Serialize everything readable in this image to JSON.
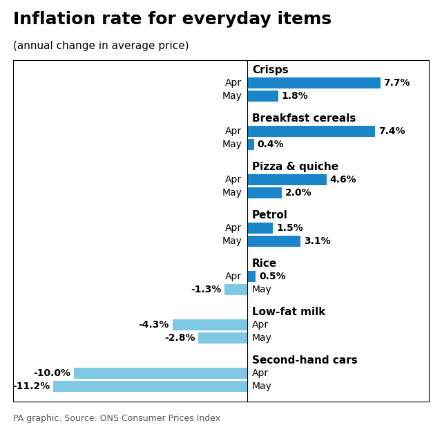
{
  "chart_data": {
    "type": "bar",
    "orientation": "horizontal",
    "title": "Inflation rate for everyday items",
    "subtitle": "(annual change in average price)",
    "footer": "PA graphic. Source: ONS Consumer Prices Index",
    "categories": [
      "Crisps",
      "Breakfast cereals",
      "Pizza & quiche",
      "Petrol",
      "Rice",
      "Low-fat milk",
      "Second-hand cars"
    ],
    "series": [
      {
        "name": "Apr",
        "values": [
          7.7,
          7.4,
          4.6,
          1.5,
          0.5,
          -4.3,
          -10.0
        ],
        "value_labels": [
          "7.7%",
          "7.4%",
          "4.6%",
          "1.5%",
          "0.5%",
          "-4.3%",
          "-10.0%"
        ],
        "colors": [
          "#1a85c8",
          "#1a85c8",
          "#1a85c8",
          "#1a85c8",
          "#1a85c8",
          "#7ec8e3",
          "#7ec8e3"
        ]
      },
      {
        "name": "May",
        "values": [
          1.8,
          0.4,
          2.0,
          3.1,
          -1.3,
          -2.8,
          -11.2
        ],
        "value_labels": [
          "1.8%",
          "0.4%",
          "2.0%",
          "3.1%",
          "-1.3%",
          "-2.8%",
          "-11.2%"
        ],
        "colors": [
          "#1a85c8",
          "#1a85c8",
          "#1a85c8",
          "#1a85c8",
          "#7ec8e3",
          "#7ec8e3",
          "#7ec8e3"
        ]
      }
    ],
    "xlim": [
      -13.5,
      10.5
    ],
    "data_labels": true,
    "tick_labels": false
  }
}
